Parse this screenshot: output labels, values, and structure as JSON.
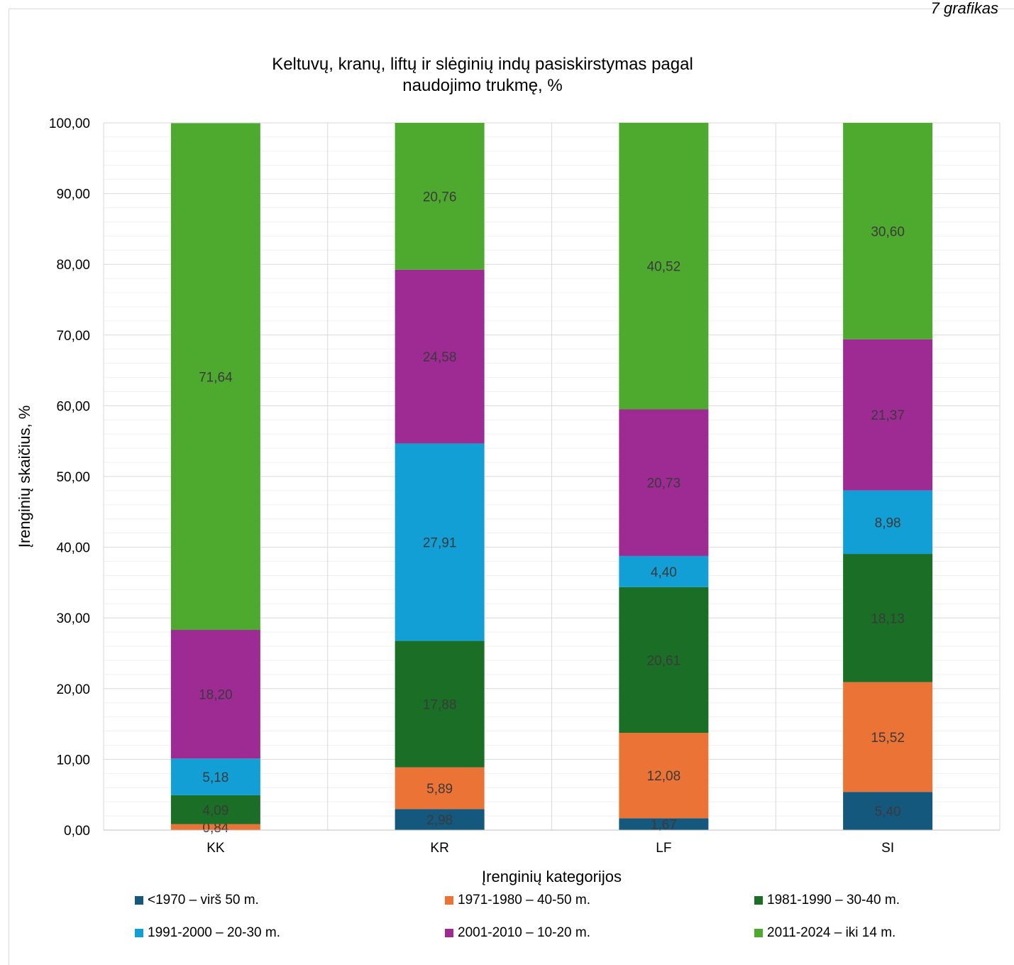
{
  "page_label": "7 grafikas",
  "colors": {
    "lt1970": "#14587d",
    "y1971_1980": "#ea7335",
    "y1981_1990": "#1a6e26",
    "y1991_2000": "#119fd5",
    "y2001_2010": "#9e2a93",
    "y2011_2024": "#4ea92f"
  },
  "chart_data": {
    "type": "bar",
    "stacked": true,
    "title": [
      "Keltuvų, kranų, liftų ir slėginių indų pasiskirstymas pagal",
      "naudojimo trukmę, %"
    ],
    "xlabel": "Įrenginių kategorijos",
    "ylabel": "Įrenginių skaičius, %",
    "ylim": [
      0,
      100
    ],
    "yticks": [
      "0,00",
      "10,00",
      "20,00",
      "30,00",
      "40,00",
      "50,00",
      "60,00",
      "70,00",
      "80,00",
      "90,00",
      "100,00"
    ],
    "categories": [
      "KK",
      "KR",
      "LF",
      "SI"
    ],
    "legend_position": "bottom",
    "series": [
      {
        "name": "<1970 – virš 50 m.",
        "color_key": "lt1970",
        "values": [
          0,
          2.98,
          1.67,
          5.4
        ],
        "labels": [
          "",
          "2,98",
          "1,67",
          "5,40"
        ],
        "label_color": "#3a3a3a"
      },
      {
        "name": "1971-1980 – 40-50 m.",
        "color_key": "y1971_1980",
        "values": [
          0.84,
          5.89,
          12.08,
          15.52
        ],
        "labels": [
          "0,84",
          "5,89",
          "12,08",
          "15,52"
        ],
        "label_color": "#3a3a3a"
      },
      {
        "name": "1981-1990 – 30-40 m.",
        "color_key": "y1981_1990",
        "values": [
          4.09,
          17.88,
          20.61,
          18.13
        ],
        "labels": [
          "4,09",
          "17,88",
          "20,61",
          "18,13"
        ],
        "label_color": "#3a3a3a"
      },
      {
        "name": "1991-2000 – 20-30 m.",
        "color_key": "y1991_2000",
        "values": [
          5.18,
          27.91,
          4.4,
          8.98
        ],
        "labels": [
          "5,18",
          "27,91",
          "4,40",
          "8,98"
        ],
        "label_color": "#3a3a3a"
      },
      {
        "name": "2001-2010 – 10-20 m.",
        "color_key": "y2001_2010",
        "values": [
          18.2,
          24.58,
          20.73,
          21.37
        ],
        "labels": [
          "18,20",
          "24,58",
          "20,73",
          "21,37"
        ],
        "label_color": "#3a3a3a"
      },
      {
        "name": "2011-2024 – iki 14 m.",
        "color_key": "y2011_2024",
        "values": [
          71.64,
          20.76,
          40.52,
          30.6
        ],
        "labels": [
          "71,64",
          "20,76",
          "40,52",
          "30,60"
        ],
        "label_color": "#3a3a3a"
      }
    ]
  }
}
